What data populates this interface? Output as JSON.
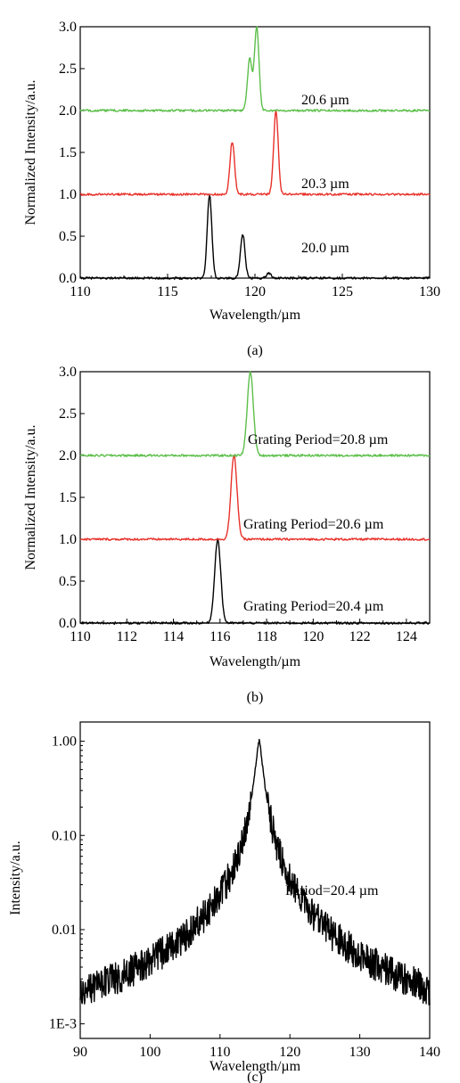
{
  "chart_data": [
    {
      "panel": "(a)",
      "type": "line",
      "xlabel": "Wavelength/µm",
      "ylabel": "Normalized Intensity/a.u.",
      "xlim": [
        110,
        130
      ],
      "ylim": [
        0,
        3
      ],
      "xticks": [
        110,
        115,
        120,
        125,
        130
      ],
      "xtick_labels": [
        "110",
        "115",
        "120",
        "125",
        "130"
      ],
      "yticks": [
        0,
        0.5,
        1,
        1.5,
        2,
        2.5,
        3
      ],
      "ytick_labels": [
        "0.0",
        "0.5",
        "1.0",
        "1.5",
        "2.0",
        "2.5",
        "3.0"
      ],
      "grid": false,
      "series": [
        {
          "label": "20.0 µm",
          "color": "#000000",
          "baseline": 0,
          "peaks": [
            [
              117.4,
              1.0
            ],
            [
              119.3,
              0.52
            ],
            [
              120.8,
              0.06
            ]
          ]
        },
        {
          "label": "20.3 µm",
          "color": "#e8312a",
          "baseline": 1.0,
          "peaks": [
            [
              118.7,
              1.63
            ],
            [
              121.2,
              2.0
            ]
          ]
        },
        {
          "label": "20.6 µm",
          "color": "#5cbf4a",
          "baseline": 2.0,
          "peaks": [
            [
              119.7,
              2.62
            ],
            [
              120.1,
              3.0
            ]
          ]
        }
      ]
    },
    {
      "panel": "(b)",
      "type": "line",
      "xlabel": "Wavelength/µm",
      "ylabel": "Normalized Intensity/a.u.",
      "xlim": [
        110,
        125
      ],
      "ylim": [
        0,
        3
      ],
      "xticks": [
        110,
        112,
        114,
        116,
        118,
        120,
        122,
        124
      ],
      "xtick_labels": [
        "110",
        "112",
        "114",
        "116",
        "118",
        "120",
        "122",
        "124"
      ],
      "yticks": [
        0,
        0.5,
        1,
        1.5,
        2,
        2.5,
        3
      ],
      "ytick_labels": [
        "0.0",
        "0.5",
        "1.0",
        "1.5",
        "2.0",
        "2.5",
        "3.0"
      ],
      "grid": false,
      "series": [
        {
          "label": "Grating Period=20.4 µm",
          "color": "#000000",
          "baseline": 0,
          "peaks": [
            [
              115.9,
              1.0
            ]
          ]
        },
        {
          "label": "Grating Period=20.6 µm",
          "color": "#e8312a",
          "baseline": 1.0,
          "peaks": [
            [
              116.6,
              2.0
            ]
          ]
        },
        {
          "label": "Grating Period=20.8 µm",
          "color": "#5cbf4a",
          "baseline": 2.0,
          "peaks": [
            [
              117.3,
              3.0
            ]
          ]
        }
      ]
    },
    {
      "panel": "(c)",
      "type": "line",
      "xlabel": "Wavelength/µm",
      "ylabel": "Intensity/a.u.",
      "xscale": "log-y",
      "xlim": [
        90,
        140
      ],
      "ylim": [
        0.0007,
        1.6
      ],
      "xticks": [
        90,
        100,
        110,
        120,
        130,
        140
      ],
      "xtick_labels": [
        "90",
        "100",
        "110",
        "120",
        "130",
        "140"
      ],
      "yticks": [
        0.001,
        0.01,
        0.1,
        1
      ],
      "ytick_labels": [
        "1E-3",
        "0.01",
        "0.10",
        "1.00"
      ],
      "grid": false,
      "series": [
        {
          "label": "Period=20.4 µm",
          "color": "#000000",
          "peak_x": 115.6,
          "peak_y": 1.0
        }
      ]
    }
  ]
}
